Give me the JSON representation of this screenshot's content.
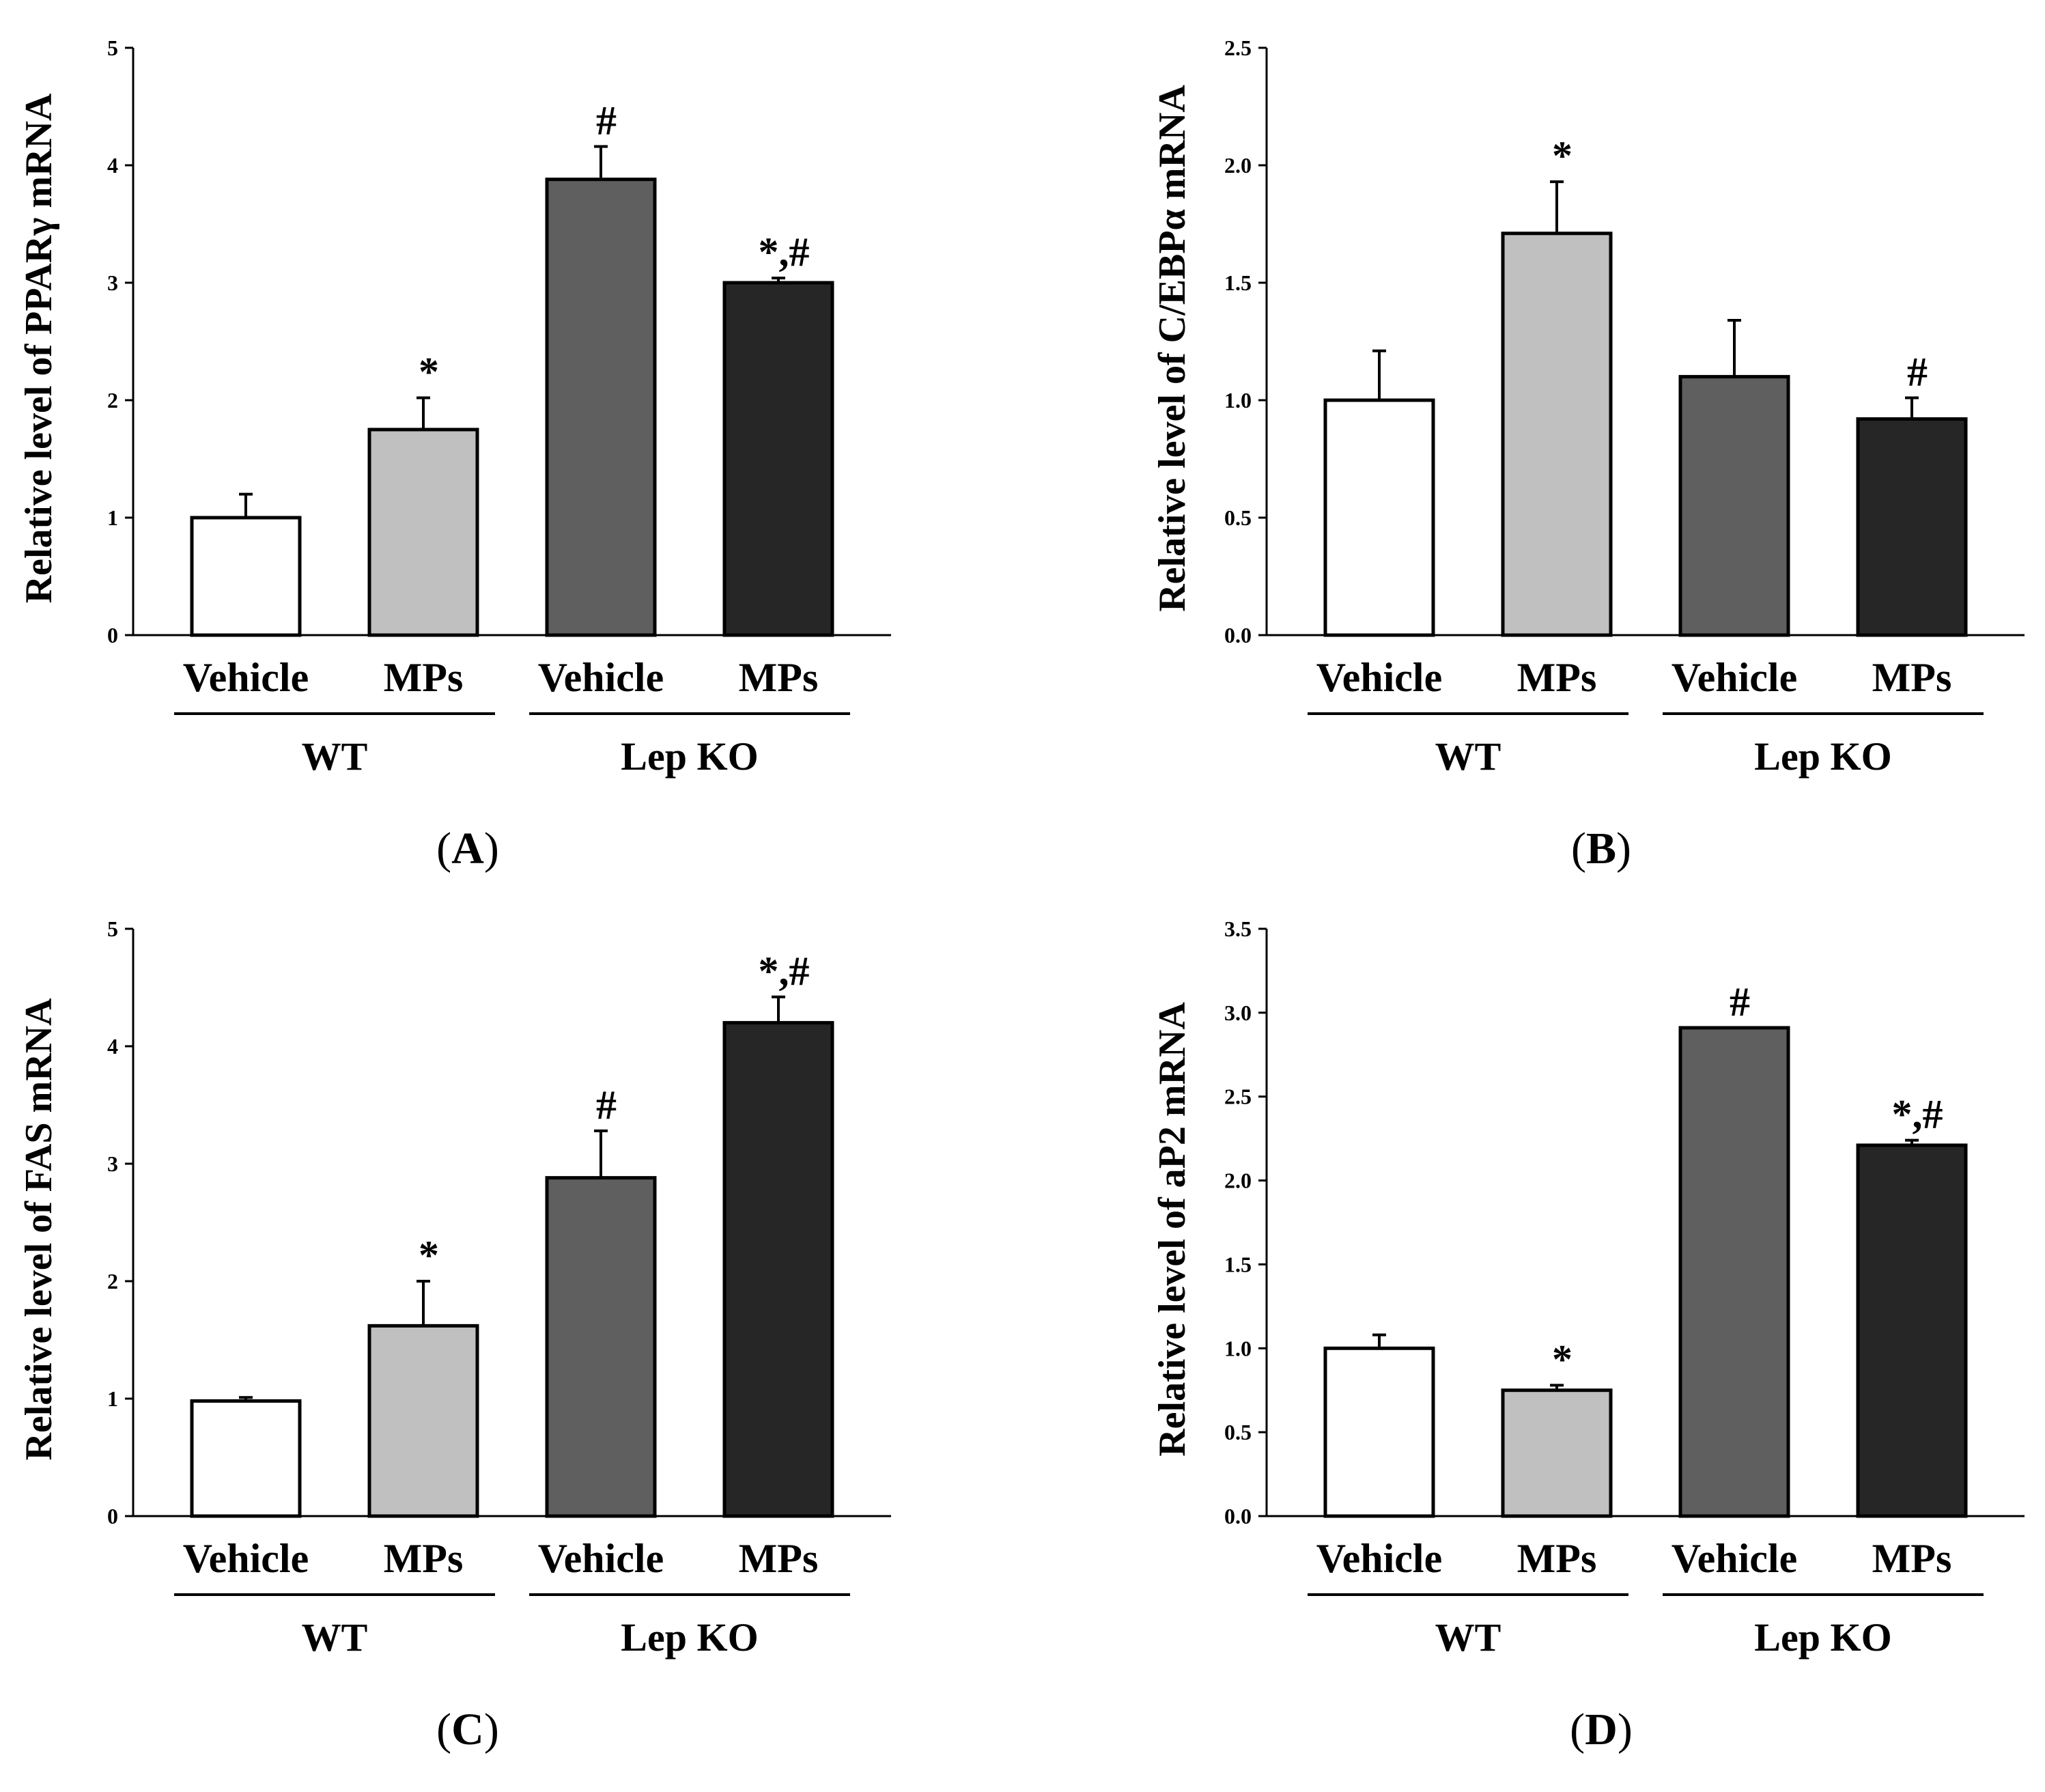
{
  "colors": {
    "wt_vehicle": "#ffffff",
    "wt_mps": "#c0c0c0",
    "ko_vehicle": "#5f5f5f",
    "ko_mps": "#262626",
    "stroke": "#000000"
  },
  "chart_data": [
    {
      "panel": "A",
      "label": "A",
      "type": "bar",
      "ylabel": "Relative level of PPARγ mRNA",
      "ylim": [
        0,
        5
      ],
      "yticks": [
        "0",
        "1",
        "2",
        "3",
        "4",
        "5"
      ],
      "categories": [
        "Vehicle",
        "MPs",
        "Vehicle",
        "MPs"
      ],
      "groups": [
        {
          "name": "WT",
          "categories": [
            0,
            1
          ]
        },
        {
          "name": "Lep KO",
          "categories": [
            2,
            3
          ]
        }
      ],
      "values": [
        1.0,
        1.75,
        3.88,
        3.0
      ],
      "errors": [
        0.2,
        0.27,
        0.28,
        0.04
      ],
      "annotations": [
        "",
        "*",
        "#",
        "*,#"
      ]
    },
    {
      "panel": "B",
      "label": "B",
      "type": "bar",
      "ylabel": "Relative level of C/EBPα mRNA",
      "ylim": [
        0,
        2.5
      ],
      "yticks": [
        "0.0",
        "0.5",
        "1.0",
        "1.5",
        "2.0",
        "2.5"
      ],
      "categories": [
        "Vehicle",
        "MPs",
        "Vehicle",
        "MPs"
      ],
      "groups": [
        {
          "name": "WT",
          "categories": [
            0,
            1
          ]
        },
        {
          "name": "Lep KO",
          "categories": [
            2,
            3
          ]
        }
      ],
      "values": [
        1.0,
        1.71,
        1.1,
        0.92
      ],
      "errors": [
        0.21,
        0.22,
        0.24,
        0.09
      ],
      "annotations": [
        "",
        "*",
        "",
        "#"
      ]
    },
    {
      "panel": "C",
      "label": "C",
      "type": "bar",
      "ylabel": "Relative level of FAS mRNA",
      "ylim": [
        0,
        5
      ],
      "yticks": [
        "0",
        "1",
        "2",
        "3",
        "4",
        "5"
      ],
      "categories": [
        "Vehicle",
        "MPs",
        "Vehicle",
        "MPs"
      ],
      "groups": [
        {
          "name": "WT",
          "categories": [
            0,
            1
          ]
        },
        {
          "name": "Lep KO",
          "categories": [
            2,
            3
          ]
        }
      ],
      "values": [
        0.98,
        1.62,
        2.88,
        4.2
      ],
      "errors": [
        0.03,
        0.38,
        0.4,
        0.22
      ],
      "annotations": [
        "",
        "*",
        "#",
        "*,#"
      ]
    },
    {
      "panel": "D",
      "label": "D",
      "type": "bar",
      "ylabel": "Relative level of aP2 mRNA",
      "ylim": [
        0,
        3.5
      ],
      "yticks": [
        "0.0",
        "0.5",
        "1.0",
        "1.5",
        "2.0",
        "2.5",
        "3.0",
        "3.5"
      ],
      "categories": [
        "Vehicle",
        "MPs",
        "Vehicle",
        "MPs"
      ],
      "groups": [
        {
          "name": "WT",
          "categories": [
            0,
            1
          ]
        },
        {
          "name": "Lep KO",
          "categories": [
            2,
            3
          ]
        }
      ],
      "values": [
        1.0,
        0.75,
        2.91,
        2.21
      ],
      "errors": [
        0.08,
        0.03,
        0.0,
        0.03
      ],
      "annotations": [
        "",
        "*",
        "#",
        "*,#"
      ]
    }
  ]
}
